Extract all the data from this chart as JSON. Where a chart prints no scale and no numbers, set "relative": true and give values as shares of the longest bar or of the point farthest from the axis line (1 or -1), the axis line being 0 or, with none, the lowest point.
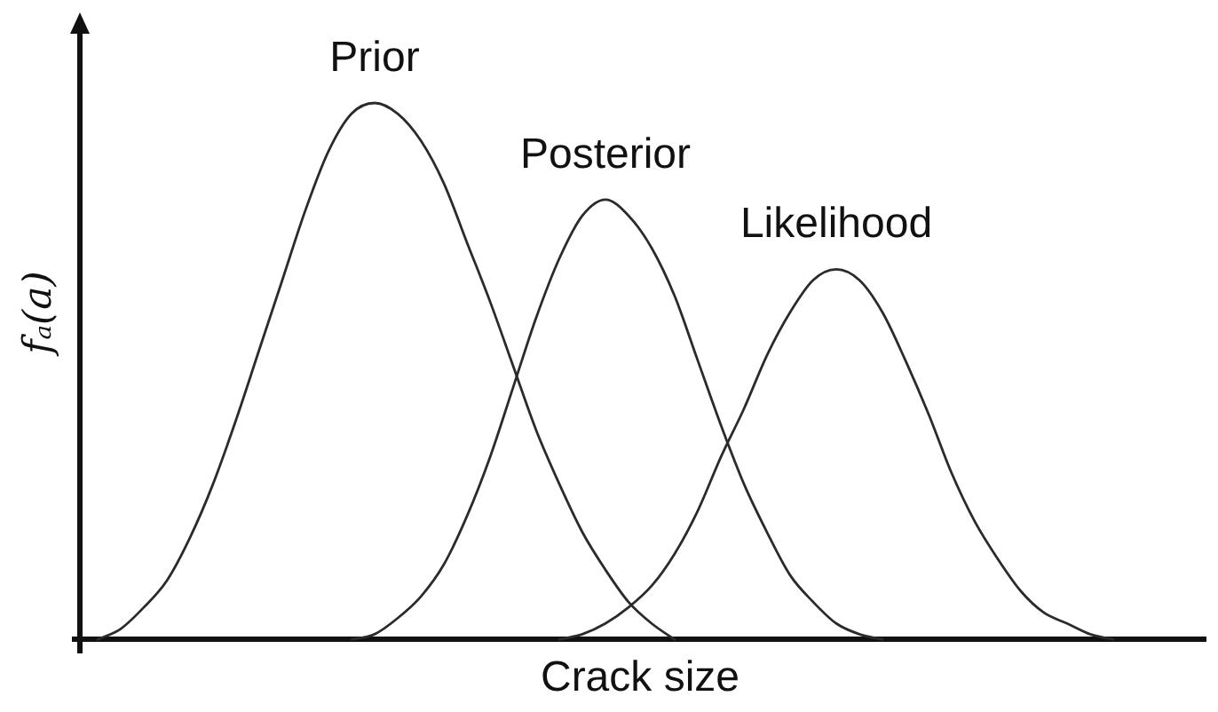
{
  "chart_data": {
    "type": "line",
    "relative": true,
    "xlabel": "Crack size",
    "ylabel": "fₐ(a)",
    "marker": "none",
    "line_style": "solid",
    "legend": false,
    "categories": [
      null,
      null,
      null,
      null,
      null,
      null,
      null,
      null,
      null,
      null,
      null,
      null,
      null,
      null,
      null,
      null,
      null,
      null,
      null,
      null,
      null,
      null,
      null,
      null,
      null,
      null,
      null,
      null,
      null,
      null,
      null,
      null,
      null,
      null,
      null,
      null,
      null,
      null,
      null,
      null,
      null,
      null,
      null,
      null,
      null,
      null,
      null,
      null,
      null,
      null
    ],
    "series": [
      {
        "name": "Prior",
        "color": "#2b2b2b",
        "values": [
          null,
          0,
          0.02,
          0.06,
          0.11,
          0.19,
          0.29,
          0.41,
          0.54,
          0.67,
          0.8,
          0.91,
          0.98,
          1,
          0.98,
          0.93,
          0.85,
          0.74,
          0.63,
          0.51,
          0.39,
          0.29,
          0.2,
          0.13,
          0.07,
          0.03,
          0,
          null,
          null,
          null,
          null,
          null,
          null,
          null,
          null,
          null,
          null,
          null,
          null,
          null,
          null,
          null,
          null,
          null,
          null,
          null,
          null,
          null,
          null,
          null
        ]
      },
      {
        "name": "Posterior",
        "color": "#2b2b2b",
        "values": [
          null,
          null,
          null,
          null,
          null,
          null,
          null,
          null,
          null,
          null,
          null,
          null,
          0,
          0.01,
          0.04,
          0.08,
          0.14,
          0.23,
          0.34,
          0.47,
          0.6,
          0.71,
          0.79,
          0.82,
          0.79,
          0.73,
          0.64,
          0.52,
          0.4,
          0.29,
          0.2,
          0.12,
          0.07,
          0.03,
          0.01,
          0,
          null,
          null,
          null,
          null,
          null,
          null,
          null,
          null,
          null,
          null,
          null,
          null,
          null,
          null
        ]
      },
      {
        "name": "Likelihood",
        "color": "#2b2b2b",
        "values": [
          null,
          null,
          null,
          null,
          null,
          null,
          null,
          null,
          null,
          null,
          null,
          null,
          null,
          null,
          null,
          null,
          null,
          null,
          null,
          null,
          null,
          0,
          0.01,
          0.03,
          0.06,
          0.1,
          0.16,
          0.24,
          0.34,
          0.43,
          0.53,
          0.61,
          0.67,
          0.69,
          0.67,
          0.61,
          0.52,
          0.42,
          0.31,
          0.22,
          0.15,
          0.09,
          0.05,
          0.03,
          0.01,
          0,
          null,
          null,
          null,
          null
        ]
      }
    ]
  }
}
